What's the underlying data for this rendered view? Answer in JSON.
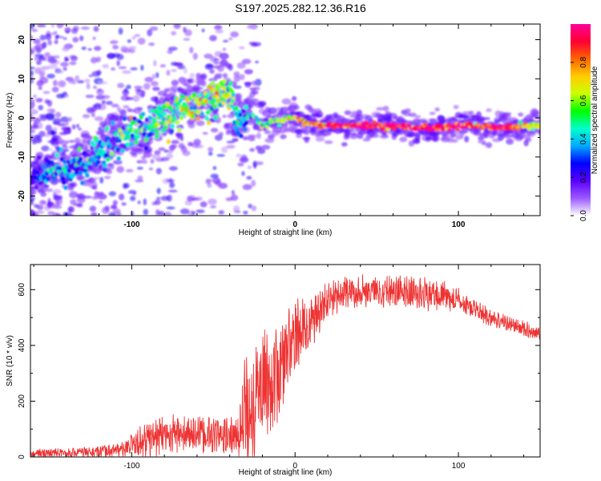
{
  "title": "S197.2025.282.12.36.R16",
  "chart_data": [
    {
      "type": "heatmap",
      "name": "spectrogram",
      "xlabel": "Height of straight line (km)",
      "ylabel": "Frequency (Hz)",
      "xlim": [
        -162,
        150
      ],
      "ylim": [
        -25,
        24
      ],
      "xticks": [
        -100,
        0,
        100
      ],
      "yticks": [
        -20,
        -10,
        0,
        10,
        20
      ],
      "ridge": {
        "x": [
          -162,
          -150,
          -140,
          -130,
          -120,
          -110,
          -100,
          -90,
          -80,
          -70,
          -60,
          -50,
          -40,
          -35,
          -30,
          -25,
          -20,
          -15,
          -10,
          -5,
          0,
          5,
          10,
          20,
          30,
          40,
          50,
          60,
          70,
          80,
          90,
          100,
          110,
          120,
          130,
          140,
          150
        ],
        "frequency_hz": [
          -16,
          -14,
          -13,
          -12,
          -9,
          -6,
          -4,
          -2,
          0,
          2,
          3.5,
          5,
          6.5,
          -1,
          1,
          0.5,
          -2,
          -1,
          -1,
          0,
          0,
          -1,
          -1.5,
          -2,
          -2,
          -2,
          -2,
          -2,
          -2.5,
          -2.5,
          -2.5,
          -2,
          -2,
          -2.5,
          -2.5,
          -2,
          -2
        ],
        "peak_amplitude": [
          0.2,
          0.3,
          0.35,
          0.3,
          0.35,
          0.35,
          0.45,
          0.4,
          0.5,
          0.55,
          0.55,
          0.6,
          0.6,
          0.3,
          0.35,
          0.4,
          0.45,
          0.55,
          0.6,
          0.6,
          0.7,
          0.75,
          0.8,
          0.9,
          0.95,
          0.95,
          0.9,
          0.95,
          0.95,
          0.9,
          0.9,
          0.95,
          0.9,
          0.9,
          0.9,
          0.7,
          0.6
        ]
      },
      "colorbar": {
        "label": "Normalized spectral amplitude",
        "range": [
          0,
          1
        ],
        "ticks": [
          "0.0",
          "0.2",
          "0.4",
          "0.6",
          "0.8"
        ],
        "stops": [
          "#ffffff",
          "#9b59ff",
          "#5a00ff",
          "#0000ff",
          "#00aaff",
          "#00ffcc",
          "#00ff00",
          "#ccff00",
          "#ffcc00",
          "#ff6600",
          "#ff0033",
          "#ff0099"
        ]
      }
    },
    {
      "type": "line",
      "name": "snr",
      "xlabel": "Height of straight line (km)",
      "ylabel": "SNR (10 * v/v)",
      "xlim": [
        -162,
        150
      ],
      "ylim": [
        0,
        690
      ],
      "xticks": [
        -100,
        0,
        100
      ],
      "yticks": [
        0,
        200,
        400,
        600
      ],
      "color": "#ee3333",
      "envelope": {
        "x": [
          -162,
          -140,
          -120,
          -105,
          -95,
          -85,
          -75,
          -65,
          -55,
          -45,
          -35,
          -30,
          -25,
          -20,
          -15,
          -10,
          -5,
          0,
          5,
          10,
          15,
          20,
          30,
          40,
          50,
          60,
          70,
          80,
          90,
          100,
          110,
          120,
          130,
          140,
          150
        ],
        "base": [
          12,
          14,
          18,
          28,
          50,
          70,
          85,
          80,
          80,
          75,
          70,
          150,
          220,
          250,
          260,
          300,
          380,
          430,
          460,
          480,
          520,
          560,
          590,
          595,
          600,
          595,
          590,
          585,
          580,
          560,
          530,
          500,
          480,
          460,
          440
        ],
        "amplitude": [
          15,
          15,
          18,
          25,
          50,
          70,
          60,
          60,
          60,
          55,
          60,
          200,
          200,
          180,
          150,
          150,
          140,
          120,
          100,
          80,
          70,
          60,
          50,
          50,
          50,
          50,
          50,
          50,
          50,
          40,
          30,
          30,
          25,
          25,
          20
        ]
      },
      "samples": 1600
    }
  ]
}
